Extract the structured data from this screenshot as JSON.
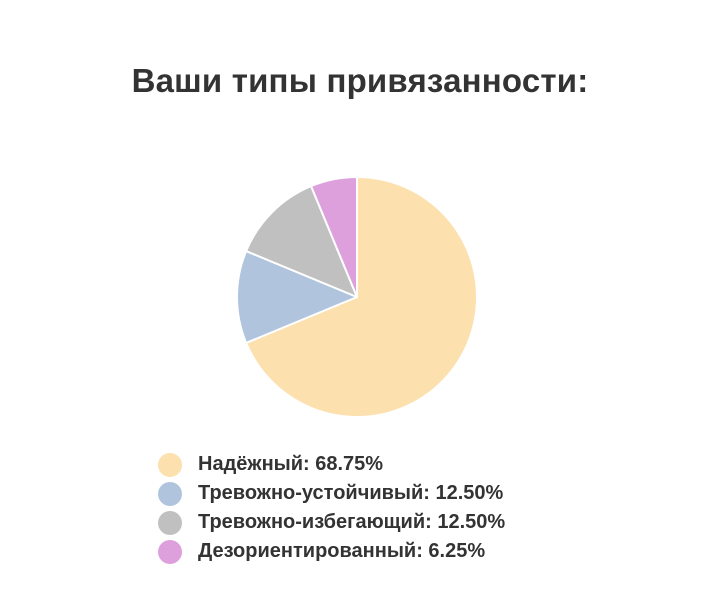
{
  "chart_data": {
    "type": "pie",
    "title": "Ваши типы привязанности:",
    "slices": [
      {
        "label": "Надёжный",
        "value": 68.75,
        "value_text": "68.75%",
        "color": "#fce0ae"
      },
      {
        "label": "Тревожно-устойчивый",
        "value": 12.5,
        "value_text": "12.50%",
        "color": "#b0c4de"
      },
      {
        "label": "Тревожно-избегающий",
        "value": 12.5,
        "value_text": "12.50%",
        "color": "#c0c0c0"
      },
      {
        "label": "Дезориентированный",
        "value": 6.25,
        "value_text": "6.25%",
        "color": "#dda0dd"
      }
    ],
    "legend_placement": "bottom"
  }
}
